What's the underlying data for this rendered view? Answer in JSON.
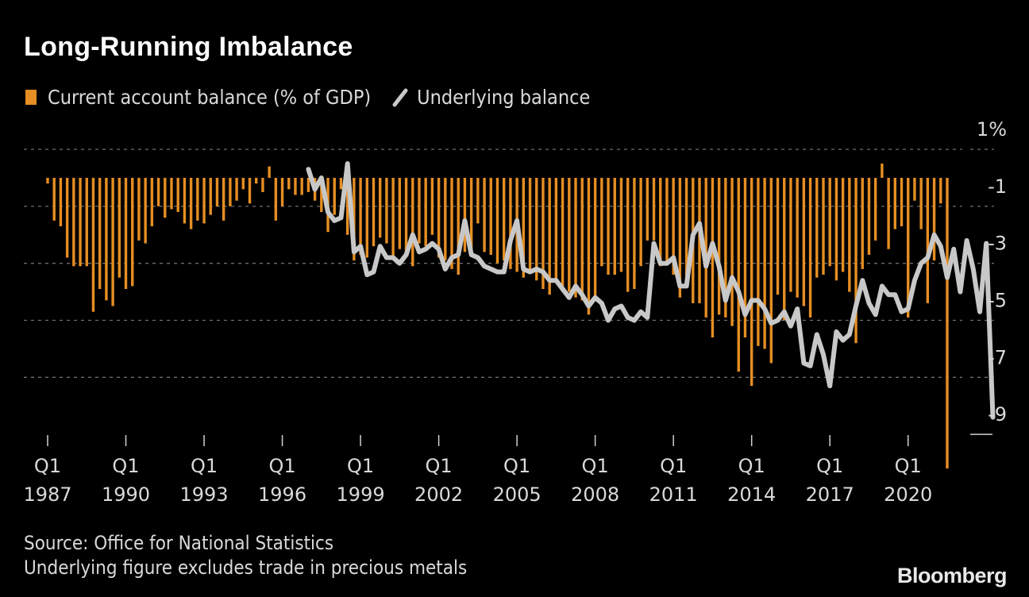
{
  "chart_data": {
    "type": "bar",
    "title": "Long-Running Imbalance",
    "legend": {
      "placement": "top-left",
      "items": [
        {
          "name": "Current account balance (% of GDP)",
          "type": "bar",
          "color": "#e58e23"
        },
        {
          "name": "Underlying balance",
          "type": "line",
          "color": "#c8c8c8"
        }
      ]
    },
    "xlabel": "",
    "ylabel": "",
    "ylim": [
      -9.6,
      1
    ],
    "yticks": [
      1,
      -1,
      -3,
      -5,
      -7,
      -9
    ],
    "ytick_labels": [
      "1%",
      "-1",
      "-3",
      "-5",
      "-7",
      "-9"
    ],
    "grid": true,
    "x_start": "1987 Q1",
    "x_end": "2022 Q1",
    "xticks": [
      {
        "q": "Q1",
        "year": "1987"
      },
      {
        "q": "Q1",
        "year": "1990"
      },
      {
        "q": "Q1",
        "year": "1993"
      },
      {
        "q": "Q1",
        "year": "1996"
      },
      {
        "q": "Q1",
        "year": "1999"
      },
      {
        "q": "Q1",
        "year": "2002"
      },
      {
        "q": "Q1",
        "year": "2005"
      },
      {
        "q": "Q1",
        "year": "2008"
      },
      {
        "q": "Q1",
        "year": "2011"
      },
      {
        "q": "Q1",
        "year": "2014"
      },
      {
        "q": "Q1",
        "year": "2017"
      },
      {
        "q": "Q1",
        "year": "2020"
      }
    ],
    "series": [
      {
        "name": "Current account balance (% of GDP)",
        "type": "bar",
        "start": "1987 Q1",
        "values": [
          -0.2,
          -1.5,
          -1.7,
          -2.8,
          -3.1,
          -3.1,
          -3.1,
          -4.7,
          -3.9,
          -4.3,
          -4.5,
          -3.5,
          -3.9,
          -3.8,
          -2.2,
          -2.3,
          -1.7,
          -1.0,
          -1.4,
          -1.1,
          -1.2,
          -1.6,
          -1.8,
          -1.5,
          -1.6,
          -1.3,
          -1.0,
          -1.5,
          -1.0,
          -0.8,
          -0.4,
          -0.9,
          -0.2,
          -0.5,
          0.4,
          -1.5,
          -1.0,
          -0.4,
          -0.6,
          -0.6,
          -0.5,
          -0.8,
          -1.2,
          -1.9,
          -1.3,
          -0.4,
          -2.0,
          -2.9,
          -2.7,
          -2.8,
          -2.4,
          -2.1,
          -2.3,
          -2.8,
          -2.5,
          -2.7,
          -3.1,
          -2.3,
          -2.4,
          -2.0,
          -2.8,
          -2.9,
          -3.2,
          -3.4,
          -2.6,
          -2.6,
          -1.6,
          -2.6,
          -2.7,
          -3.0,
          -2.9,
          -3.2,
          -3.3,
          -3.5,
          -3.3,
          -3.6,
          -3.9,
          -4.1,
          -3.6,
          -4.0,
          -4.0,
          -4.2,
          -4.3,
          -4.8,
          -4.3,
          -3.1,
          -3.4,
          -3.4,
          -3.3,
          -4.0,
          -3.9,
          -3.1,
          -2.2,
          -2.2,
          -3.1,
          -3.0,
          -3.4,
          -4.2,
          -3.6,
          -4.4,
          -4.4,
          -4.9,
          -5.6,
          -4.8,
          -4.9,
          -5.2,
          -6.8,
          -5.6,
          -7.3,
          -5.9,
          -6.0,
          -6.5,
          -4.1,
          -5.0,
          -4.0,
          -4.2,
          -4.5,
          -4.9,
          -3.5,
          -3.4,
          -3.1,
          -3.6,
          -3.3,
          -4.0,
          -5.8,
          -3.2,
          -2.7,
          -2.2,
          0.5,
          -2.5,
          -1.8,
          -1.7,
          -4.9,
          -0.8,
          -1.8,
          -4.4,
          -2.9,
          -0.9,
          -10.2
        ]
      },
      {
        "name": "Underlying balance",
        "type": "line",
        "start": "1997 Q1",
        "values": [
          0.3,
          -0.4,
          0.0,
          -1.2,
          -1.5,
          -1.4,
          0.5,
          -2.6,
          -2.4,
          -3.4,
          -3.3,
          -2.4,
          -2.8,
          -2.8,
          -3.0,
          -2.7,
          -2.0,
          -2.6,
          -2.5,
          -2.3,
          -2.5,
          -3.2,
          -2.8,
          -2.7,
          -1.5,
          -2.7,
          -2.8,
          -3.1,
          -3.2,
          -3.3,
          -3.3,
          -2.2,
          -1.5,
          -3.2,
          -3.3,
          -3.2,
          -3.3,
          -3.6,
          -3.6,
          -3.9,
          -4.2,
          -3.8,
          -4.1,
          -4.5,
          -4.2,
          -4.4,
          -5.0,
          -4.6,
          -4.5,
          -4.9,
          -5.0,
          -4.7,
          -4.9,
          -2.3,
          -3.0,
          -3.0,
          -2.8,
          -3.8,
          -3.8,
          -2.0,
          -1.6,
          -3.1,
          -2.3,
          -3.1,
          -4.3,
          -3.5,
          -4.0,
          -4.8,
          -4.3,
          -4.3,
          -4.6,
          -5.1,
          -5.0,
          -4.7,
          -5.2,
          -4.6,
          -6.5,
          -6.6,
          -5.5,
          -6.2,
          -7.3,
          -5.4,
          -5.7,
          -5.5,
          -4.5,
          -3.6,
          -4.4,
          -4.8,
          -3.8,
          -4.1,
          -4.1,
          -4.7,
          -4.6,
          -3.6,
          -3.0,
          -2.8,
          -2.0,
          -2.4,
          -3.5,
          -2.5,
          -4.0,
          -2.2,
          -3.2,
          -4.7,
          -2.3,
          -8.4
        ]
      }
    ]
  },
  "text": {
    "title": "Long-Running Imbalance",
    "legend_bar": "Current account balance (% of GDP)",
    "legend_line": "Underlying balance",
    "source": "Source: Office for National Statistics",
    "note": "Underlying figure excludes trade in precious metals",
    "logo": "Bloomberg"
  },
  "colors": {
    "background": "#000000",
    "bar": "#e58e23",
    "line": "#c8c8c8",
    "grid": "#6e6e6e",
    "text": "#d9d9d9"
  }
}
